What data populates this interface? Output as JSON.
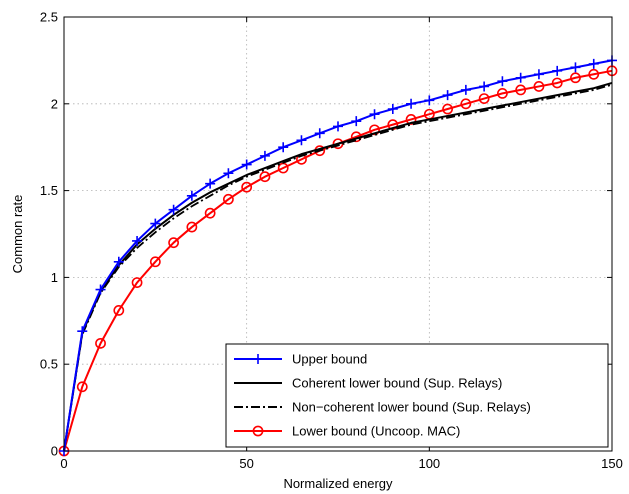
{
  "chart_data": {
    "type": "line",
    "title": "",
    "xlabel": "Normalized energy",
    "ylabel": "Common rate",
    "xlim": [
      0,
      150
    ],
    "ylim": [
      0,
      2.5
    ],
    "xticks": [
      0,
      50,
      100,
      150
    ],
    "yticks": [
      0,
      0.5,
      1,
      1.5,
      2,
      2.5
    ],
    "xtick_labels": [
      "0",
      "50",
      "100",
      "150"
    ],
    "ytick_labels": [
      "0",
      "0.5",
      "1",
      "1.5",
      "2",
      "2.5"
    ],
    "grid": true,
    "legend_position": "bottom-right",
    "x": [
      0,
      5,
      10,
      15,
      20,
      25,
      30,
      35,
      40,
      45,
      50,
      55,
      60,
      65,
      70,
      75,
      80,
      85,
      90,
      95,
      100,
      105,
      110,
      115,
      120,
      125,
      130,
      135,
      140,
      145,
      150
    ],
    "series": [
      {
        "name": "Upper bound",
        "color": "#0000ff",
        "line_style": "solid",
        "marker": "plus",
        "values": [
          0,
          0.69,
          0.93,
          1.09,
          1.21,
          1.31,
          1.39,
          1.47,
          1.54,
          1.6,
          1.65,
          1.7,
          1.75,
          1.79,
          1.83,
          1.87,
          1.9,
          1.94,
          1.97,
          2.0,
          2.02,
          2.05,
          2.08,
          2.1,
          2.13,
          2.15,
          2.17,
          2.19,
          2.21,
          2.23,
          2.25
        ]
      },
      {
        "name": "Coherent lower bound (Sup. Relays)",
        "color": "#000000",
        "line_style": "solid",
        "marker": "none",
        "values": [
          0,
          0.68,
          0.92,
          1.07,
          1.19,
          1.28,
          1.36,
          1.43,
          1.49,
          1.54,
          1.59,
          1.63,
          1.67,
          1.71,
          1.74,
          1.77,
          1.8,
          1.83,
          1.86,
          1.89,
          1.91,
          1.93,
          1.95,
          1.97,
          1.99,
          2.01,
          2.03,
          2.05,
          2.07,
          2.09,
          2.12
        ]
      },
      {
        "name": "Non−coherent lower bound (Sup. Relays)",
        "color": "#000000",
        "line_style": "dashdot",
        "marker": "none",
        "values": [
          0,
          0.67,
          0.91,
          1.06,
          1.17,
          1.26,
          1.34,
          1.41,
          1.47,
          1.53,
          1.58,
          1.62,
          1.66,
          1.7,
          1.73,
          1.76,
          1.79,
          1.82,
          1.85,
          1.88,
          1.9,
          1.92,
          1.94,
          1.96,
          1.98,
          2.0,
          2.02,
          2.04,
          2.06,
          2.08,
          2.11
        ]
      },
      {
        "name": "Lower bound (Uncoop. MAC)",
        "color": "#ff0000",
        "line_style": "solid",
        "marker": "circle",
        "values": [
          0,
          0.37,
          0.62,
          0.81,
          0.97,
          1.09,
          1.2,
          1.29,
          1.37,
          1.45,
          1.52,
          1.58,
          1.63,
          1.68,
          1.73,
          1.77,
          1.81,
          1.85,
          1.88,
          1.91,
          1.94,
          1.97,
          2.0,
          2.03,
          2.06,
          2.08,
          2.1,
          2.12,
          2.15,
          2.17,
          2.19
        ]
      }
    ]
  }
}
